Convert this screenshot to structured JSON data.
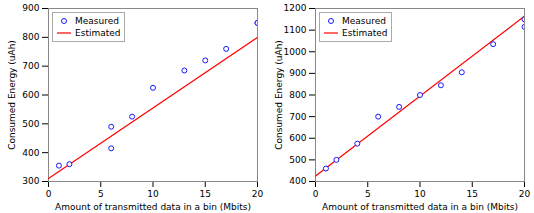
{
  "chart_data": [
    {
      "type": "scatter",
      "xlabel": "Amount of transmitted data in a bin (Mbits)",
      "ylabel": "Consumed Energy (uAh)",
      "xlim": [
        0,
        20
      ],
      "xticks": [
        0,
        5,
        10,
        15,
        20
      ],
      "ylim": [
        300,
        900
      ],
      "yticks": [
        300,
        400,
        500,
        600,
        700,
        800,
        900
      ],
      "legend": "upper left",
      "series": [
        {
          "name": "Measured",
          "type": "scatter",
          "marker": "circle",
          "color": "blue",
          "x": [
            1,
            2,
            6,
            6,
            8,
            10,
            13,
            15,
            17,
            20,
            20
          ],
          "values": [
            355,
            360,
            415,
            490,
            525,
            625,
            685,
            720,
            760,
            850,
            850
          ]
        },
        {
          "name": "Estimated",
          "type": "line",
          "color": "red",
          "x": [
            0,
            20
          ],
          "values": [
            310,
            800
          ]
        }
      ]
    },
    {
      "type": "scatter",
      "xlabel": "Amount of transmitted data in a bin (Mbits)",
      "ylabel": "Consumed Energy (uAh)",
      "xlim": [
        0,
        20
      ],
      "xticks": [
        0,
        5,
        10,
        15,
        20
      ],
      "ylim": [
        400,
        1200
      ],
      "yticks": [
        400,
        500,
        600,
        700,
        800,
        900,
        1000,
        1100,
        1200
      ],
      "legend": "upper left",
      "series": [
        {
          "name": "Measured",
          "type": "scatter",
          "marker": "circle",
          "color": "blue",
          "x": [
            1,
            2,
            4,
            6,
            8,
            10,
            12,
            14,
            17,
            20,
            20
          ],
          "values": [
            460,
            500,
            575,
            700,
            745,
            800,
            845,
            905,
            1035,
            1115,
            1150
          ]
        },
        {
          "name": "Estimated",
          "type": "line",
          "color": "red",
          "x": [
            0,
            20
          ],
          "values": [
            425,
            1165
          ]
        }
      ]
    }
  ]
}
